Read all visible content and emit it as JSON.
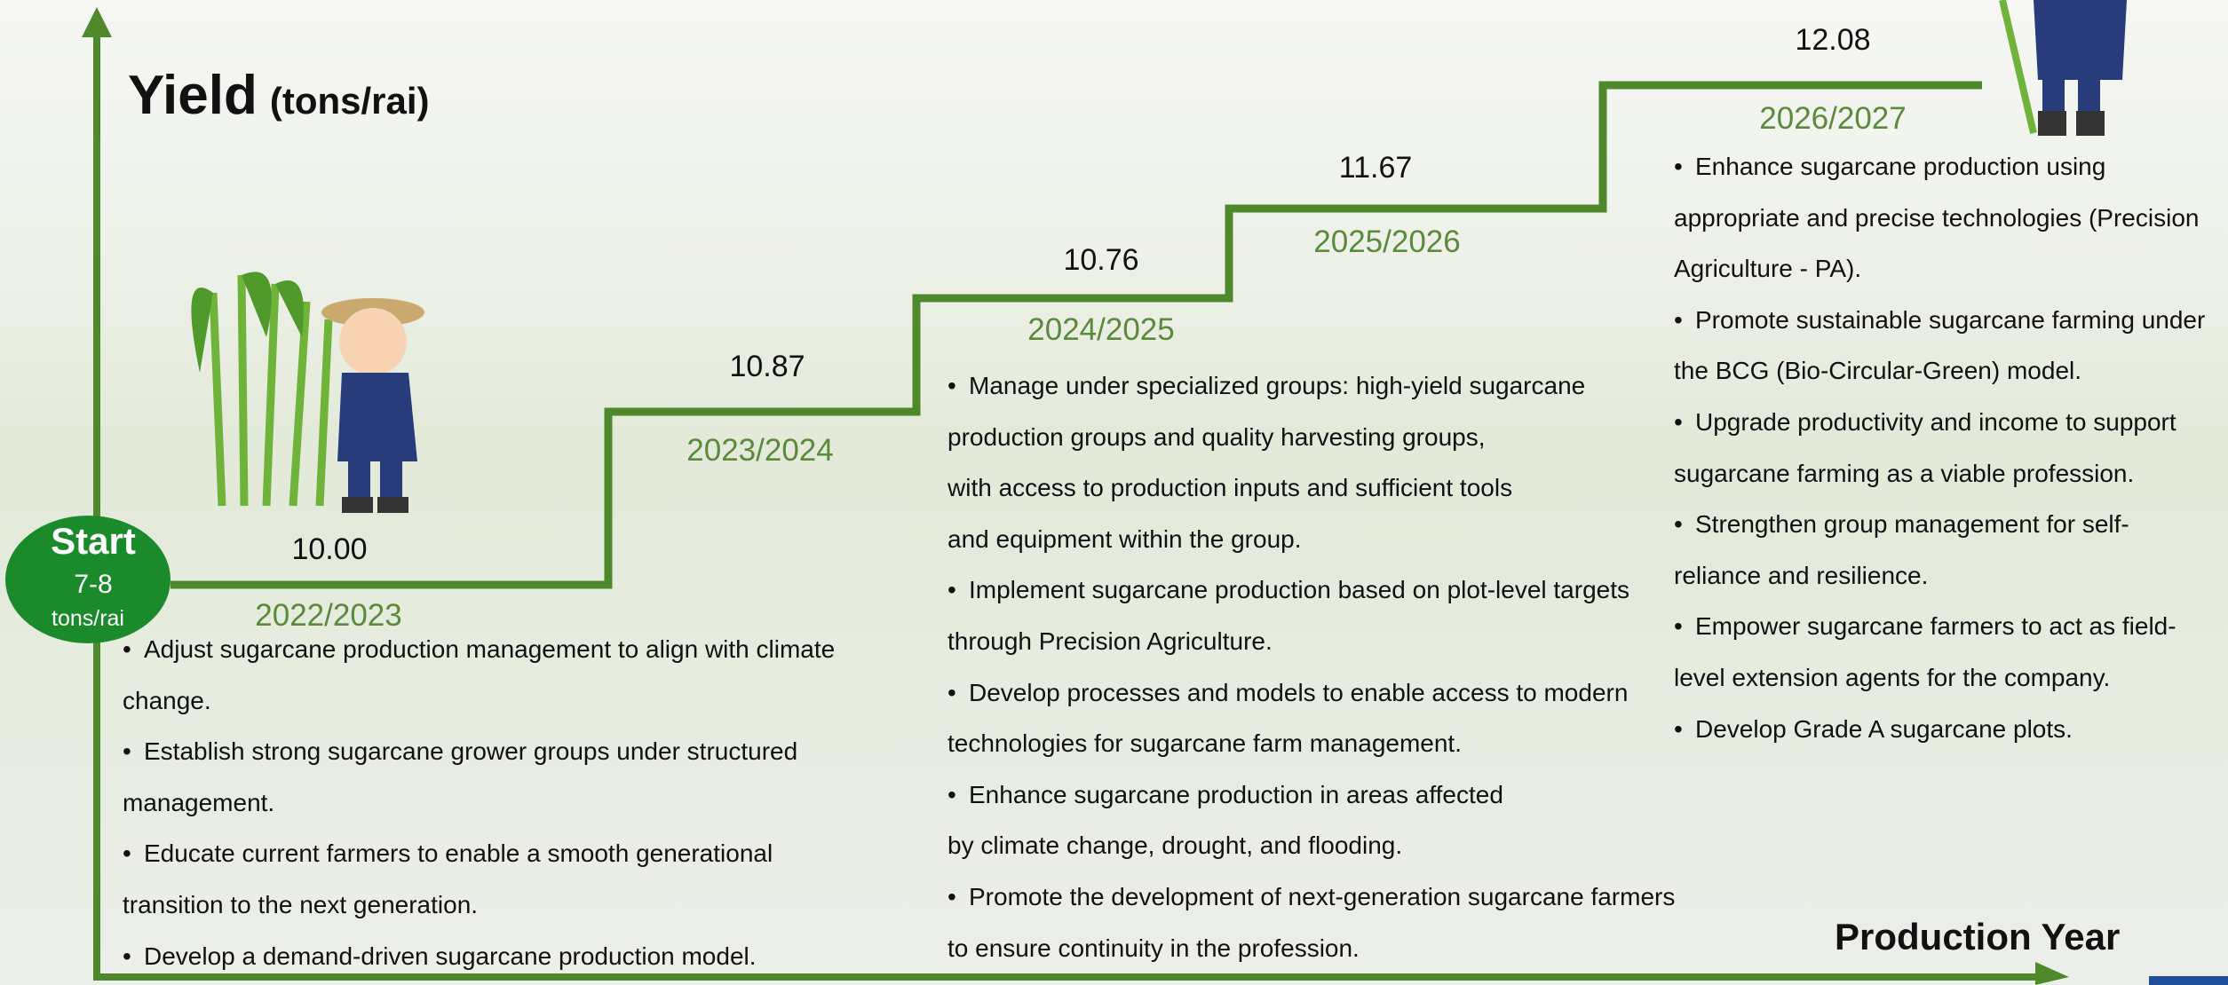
{
  "header": {
    "title": "Yield",
    "unit": "(tons/rai)"
  },
  "start": {
    "label": "Start",
    "value": "7-8",
    "unit": "tons/rai"
  },
  "x_axis_label": "Production Year",
  "steps": [
    {
      "value": "10.00",
      "year": "2022/2023",
      "bullets": [
        [
          "Adjust sugarcane production management to align with climate",
          "change."
        ],
        [
          "Establish strong sugarcane grower groups under structured",
          "management."
        ],
        [
          "Educate current farmers to enable a smooth generational",
          "transition to the next generation."
        ],
        [
          "Develop a demand-driven sugarcane production model."
        ]
      ]
    },
    {
      "value": "10.87",
      "year": "2023/2024",
      "bullets": []
    },
    {
      "value": "10.76",
      "year": "2024/2025",
      "bullets": [
        [
          "Manage under specialized groups: high-yield sugarcane",
          "production groups and quality harvesting groups,",
          "with access to production inputs and sufficient tools",
          "and equipment within the group."
        ],
        [
          "Implement sugarcane production based on plot-level targets",
          "through Precision Agriculture."
        ],
        [
          "Develop processes and models to enable access to modern",
          "technologies for sugarcane farm management."
        ],
        [
          "Enhance sugarcane production in areas affected",
          "by climate change, drought, and flooding."
        ],
        [
          "Promote the development of next-generation sugarcane farmers",
          "to ensure continuity in the profession."
        ]
      ]
    },
    {
      "value": "11.67",
      "year": "2025/2026",
      "bullets": []
    },
    {
      "value": "12.08",
      "year": "2026/2027",
      "bullets": [
        [
          "Enhance sugarcane production using",
          "appropriate and precise technologies (Precision",
          "Agriculture - PA)."
        ],
        [
          "Promote sustainable sugarcane farming under",
          "the BCG (Bio-Circular-Green) model."
        ],
        [
          "Upgrade productivity and income to support",
          "sugarcane farming as a viable profession."
        ],
        [
          "Strengthen group management for self-",
          "reliance and resilience."
        ],
        [
          "Empower sugarcane farmers to act as field-",
          "level extension agents for the company."
        ],
        [
          "Develop Grade A sugarcane plots."
        ]
      ]
    }
  ]
}
